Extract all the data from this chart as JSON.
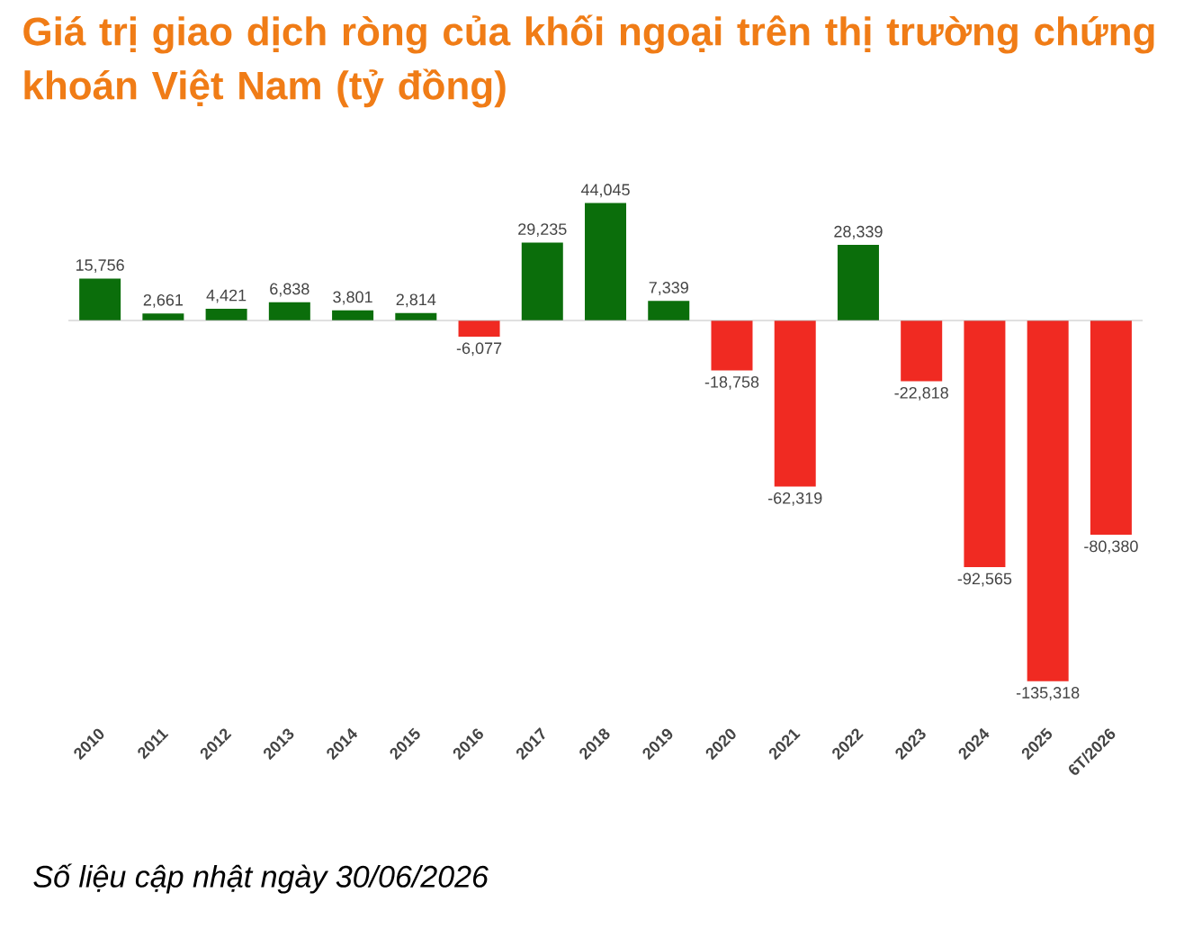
{
  "chart_data": {
    "type": "bar",
    "title": "Giá trị giao dịch ròng của khối ngoại trên thị trường chứng khoán Việt Nam (tỷ đồng)",
    "categories": [
      "2010",
      "2011",
      "2012",
      "2013",
      "2014",
      "2015",
      "2016",
      "2017",
      "2018",
      "2019",
      "2020",
      "2021",
      "2022",
      "2023",
      "2024",
      "2025",
      "6T/2026"
    ],
    "values": [
      15756,
      2661,
      4421,
      6838,
      3801,
      2814,
      -6077,
      29235,
      44045,
      7339,
      -18758,
      -62319,
      28339,
      -22818,
      -92565,
      -135318,
      -80380
    ],
    "value_labels": [
      "15,756",
      "2,661",
      "4,421",
      "6,838",
      "3,801",
      "2,814",
      "-6,077",
      "29,235",
      "44,045",
      "7,339",
      "-18,758",
      "-62,319",
      "28,339",
      "-22,818",
      "-92,565",
      "-135,318",
      "-80,380"
    ],
    "colors": [
      "#0b6e0b",
      "#0b6e0b",
      "#0b6e0b",
      "#0b6e0b",
      "#0b6e0b",
      "#0b6e0b",
      "#f02a22",
      "#0b6e0b",
      "#0b6e0b",
      "#0b6e0b",
      "#f02a22",
      "#f02a22",
      "#0b6e0b",
      "#f02a22",
      "#f02a22",
      "#f02a22",
      "#f02a22"
    ],
    "annotations": [
      "*Số liệu cập nhật ngày 30/06/2026*"
    ]
  }
}
